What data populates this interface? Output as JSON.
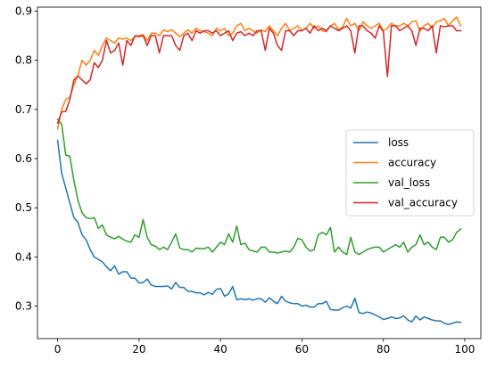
{
  "chart_data": {
    "type": "line",
    "title": "",
    "xlabel": "",
    "ylabel": "",
    "xlim": [
      -4.95,
      103.95
    ],
    "ylim": [
      0.234,
      0.908
    ],
    "xticks": [
      0,
      20,
      40,
      60,
      80,
      100
    ],
    "yticks": [
      0.3,
      0.4,
      0.5,
      0.6,
      0.7,
      0.8,
      0.9
    ],
    "grid": false,
    "legend": {
      "position": "center-right"
    },
    "series": [
      {
        "name": "loss",
        "color": "#1f77b4",
        "values": [
          0.637,
          0.57,
          0.54,
          0.51,
          0.48,
          0.47,
          0.445,
          0.435,
          0.415,
          0.4,
          0.395,
          0.39,
          0.38,
          0.372,
          0.382,
          0.365,
          0.37,
          0.37,
          0.357,
          0.357,
          0.347,
          0.348,
          0.355,
          0.343,
          0.34,
          0.34,
          0.34,
          0.341,
          0.335,
          0.348,
          0.338,
          0.338,
          0.33,
          0.33,
          0.327,
          0.327,
          0.323,
          0.328,
          0.324,
          0.334,
          0.336,
          0.32,
          0.325,
          0.34,
          0.313,
          0.315,
          0.313,
          0.315,
          0.312,
          0.315,
          0.315,
          0.308,
          0.317,
          0.31,
          0.305,
          0.32,
          0.31,
          0.307,
          0.305,
          0.305,
          0.3,
          0.302,
          0.298,
          0.298,
          0.305,
          0.305,
          0.31,
          0.293,
          0.292,
          0.292,
          0.297,
          0.3,
          0.296,
          0.316,
          0.287,
          0.285,
          0.288,
          0.286,
          0.282,
          0.278,
          0.273,
          0.275,
          0.278,
          0.275,
          0.276,
          0.28,
          0.272,
          0.268,
          0.28,
          0.272,
          0.278,
          0.275,
          0.272,
          0.27,
          0.27,
          0.265,
          0.263,
          0.265,
          0.268,
          0.267
        ]
      },
      {
        "name": "accuracy",
        "color": "#ff7f0e",
        "values": [
          0.66,
          0.7,
          0.72,
          0.725,
          0.75,
          0.77,
          0.8,
          0.79,
          0.8,
          0.82,
          0.81,
          0.83,
          0.845,
          0.84,
          0.835,
          0.845,
          0.843,
          0.845,
          0.84,
          0.848,
          0.85,
          0.852,
          0.84,
          0.855,
          0.855,
          0.85,
          0.862,
          0.858,
          0.862,
          0.855,
          0.848,
          0.855,
          0.862,
          0.855,
          0.865,
          0.86,
          0.858,
          0.855,
          0.85,
          0.865,
          0.86,
          0.865,
          0.85,
          0.855,
          0.87,
          0.875,
          0.86,
          0.865,
          0.86,
          0.855,
          0.862,
          0.858,
          0.87,
          0.86,
          0.85,
          0.865,
          0.875,
          0.86,
          0.865,
          0.87,
          0.86,
          0.865,
          0.875,
          0.865,
          0.87,
          0.86,
          0.858,
          0.87,
          0.875,
          0.862,
          0.868,
          0.885,
          0.87,
          0.875,
          0.86,
          0.878,
          0.87,
          0.865,
          0.87,
          0.875,
          0.86,
          0.865,
          0.875,
          0.87,
          0.87,
          0.875,
          0.87,
          0.878,
          0.88,
          0.86,
          0.87,
          0.875,
          0.865,
          0.878,
          0.88,
          0.885,
          0.87,
          0.88,
          0.888,
          0.87
        ]
      },
      {
        "name": "val_loss",
        "color": "#2ca02c",
        "values": [
          0.68,
          0.67,
          0.607,
          0.605,
          0.555,
          0.515,
          0.49,
          0.48,
          0.478,
          0.48,
          0.458,
          0.465,
          0.445,
          0.44,
          0.437,
          0.442,
          0.436,
          0.432,
          0.43,
          0.445,
          0.44,
          0.476,
          0.44,
          0.425,
          0.422,
          0.415,
          0.42,
          0.415,
          0.43,
          0.447,
          0.418,
          0.415,
          0.415,
          0.41,
          0.418,
          0.417,
          0.417,
          0.42,
          0.41,
          0.42,
          0.43,
          0.425,
          0.447,
          0.43,
          0.463,
          0.425,
          0.428,
          0.415,
          0.412,
          0.41,
          0.42,
          0.42,
          0.41,
          0.41,
          0.408,
          0.41,
          0.412,
          0.41,
          0.42,
          0.438,
          0.435,
          0.42,
          0.412,
          0.415,
          0.445,
          0.45,
          0.445,
          0.46,
          0.41,
          0.42,
          0.41,
          0.405,
          0.44,
          0.41,
          0.405,
          0.41,
          0.415,
          0.418,
          0.42,
          0.42,
          0.41,
          0.415,
          0.42,
          0.425,
          0.42,
          0.43,
          0.41,
          0.42,
          0.425,
          0.445,
          0.425,
          0.43,
          0.42,
          0.415,
          0.44,
          0.44,
          0.43,
          0.435,
          0.45,
          0.457
        ]
      },
      {
        "name": "val_accuracy",
        "color": "#d62728",
        "values": [
          0.672,
          0.695,
          0.696,
          0.72,
          0.76,
          0.768,
          0.76,
          0.752,
          0.76,
          0.795,
          0.785,
          0.8,
          0.84,
          0.815,
          0.82,
          0.835,
          0.79,
          0.84,
          0.83,
          0.85,
          0.848,
          0.85,
          0.83,
          0.85,
          0.85,
          0.815,
          0.85,
          0.85,
          0.85,
          0.83,
          0.82,
          0.85,
          0.855,
          0.84,
          0.86,
          0.855,
          0.86,
          0.86,
          0.855,
          0.86,
          0.85,
          0.855,
          0.86,
          0.84,
          0.855,
          0.858,
          0.85,
          0.855,
          0.85,
          0.86,
          0.86,
          0.82,
          0.865,
          0.855,
          0.83,
          0.82,
          0.86,
          0.86,
          0.85,
          0.86,
          0.86,
          0.865,
          0.855,
          0.87,
          0.86,
          0.865,
          0.86,
          0.87,
          0.865,
          0.86,
          0.865,
          0.87,
          0.86,
          0.815,
          0.87,
          0.87,
          0.86,
          0.855,
          0.845,
          0.87,
          0.858,
          0.767,
          0.87,
          0.87,
          0.86,
          0.865,
          0.87,
          0.86,
          0.83,
          0.865,
          0.865,
          0.86,
          0.87,
          0.815,
          0.87,
          0.868,
          0.87,
          0.87,
          0.86,
          0.86
        ]
      }
    ]
  }
}
